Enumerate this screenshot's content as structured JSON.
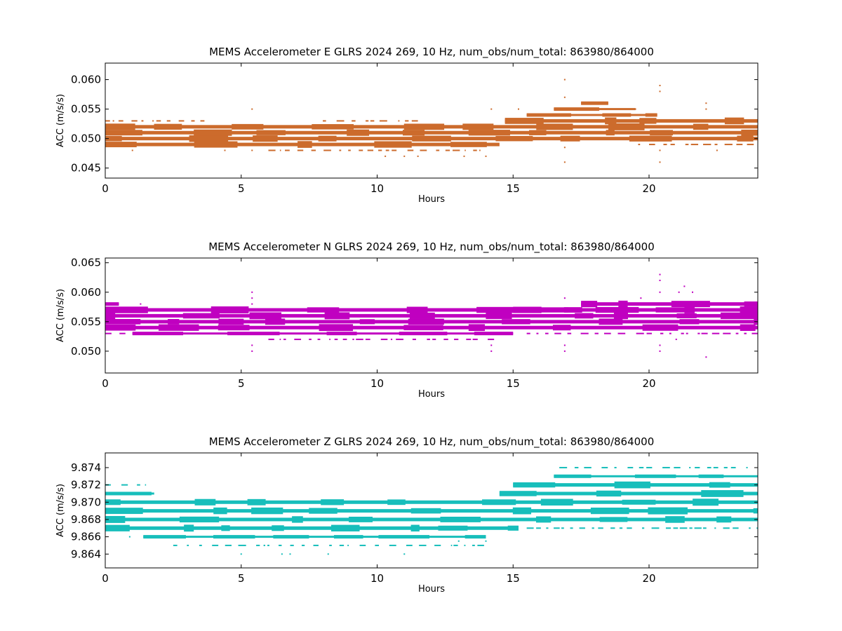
{
  "chart_data": [
    {
      "type": "scatter",
      "title": "MEMS Accelerometer E GLRS 2024 269, 10 Hz, num_obs/num_total: 863980/864000",
      "xlabel": "Hours",
      "ylabel": "ACC (m/s/s)",
      "xlim": [
        0,
        24
      ],
      "ylim": [
        0.0433,
        0.0628
      ],
      "xticks": [
        0,
        5,
        10,
        15,
        20
      ],
      "xtick_labels": [
        "0",
        "5",
        "10",
        "15",
        "20"
      ],
      "yticks": [
        0.045,
        0.05,
        0.055,
        0.06
      ],
      "ytick_labels": [
        "0.045",
        "0.050",
        "0.055",
        "0.060"
      ],
      "color": "#cc6b2c",
      "series": [
        {
          "bands": [
            {
              "y": 0.049,
              "x": [
                0,
                14.5
              ],
              "density": "dense"
            },
            {
              "y": 0.05,
              "x": [
                0,
                24
              ],
              "density": "dense"
            },
            {
              "y": 0.051,
              "x": [
                0,
                24
              ],
              "density": "dense"
            },
            {
              "y": 0.052,
              "x": [
                0,
                24
              ],
              "density": "dense"
            },
            {
              "y": 0.053,
              "x": [
                14.7,
                24
              ],
              "density": "dense"
            },
            {
              "y": 0.054,
              "x": [
                15.5,
                20.3
              ],
              "density": "medium"
            },
            {
              "y": 0.055,
              "x": [
                16.5,
                19.5
              ],
              "density": "medium"
            },
            {
              "y": 0.056,
              "x": [
                17.5,
                18.5
              ],
              "density": "medium"
            },
            {
              "y": 0.048,
              "x": [
                6.0,
                13.8
              ],
              "density": "sparse"
            },
            {
              "y": 0.049,
              "x": [
                19.6,
                24
              ],
              "density": "sparse"
            },
            {
              "y": 0.053,
              "x": [
                0,
                3.9
              ],
              "density": "sparse"
            },
            {
              "y": 0.053,
              "x": [
                8.0,
                11.5
              ],
              "density": "sparse"
            }
          ],
          "points": [
            {
              "x": 0.3,
              "y": 0.053
            },
            {
              "x": 1.0,
              "y": 0.048
            },
            {
              "x": 4.4,
              "y": 0.048
            },
            {
              "x": 5.4,
              "y": 0.055
            },
            {
              "x": 5.4,
              "y": 0.048
            },
            {
              "x": 10.3,
              "y": 0.047
            },
            {
              "x": 11.0,
              "y": 0.047
            },
            {
              "x": 11.5,
              "y": 0.047
            },
            {
              "x": 13.2,
              "y": 0.047
            },
            {
              "x": 14.0,
              "y": 0.047
            },
            {
              "x": 14.2,
              "y": 0.055
            },
            {
              "x": 16.9,
              "y": 0.06
            },
            {
              "x": 16.9,
              "y": 0.057
            },
            {
              "x": 16.9,
              "y": 0.046
            },
            {
              "x": 16.9,
              "y": 0.0485
            },
            {
              "x": 20.4,
              "y": 0.059
            },
            {
              "x": 20.4,
              "y": 0.058
            },
            {
              "x": 20.4,
              "y": 0.046
            },
            {
              "x": 20.4,
              "y": 0.048
            },
            {
              "x": 22.1,
              "y": 0.056
            },
            {
              "x": 22.1,
              "y": 0.055
            },
            {
              "x": 22.5,
              "y": 0.048
            },
            {
              "x": 19.5,
              "y": 0.055
            },
            {
              "x": 15.2,
              "y": 0.055
            }
          ]
        }
      ]
    },
    {
      "type": "scatter",
      "title": "MEMS Accelerometer N GLRS 2024 269, 10 Hz, num_obs/num_total: 863980/864000",
      "xlabel": "Hours",
      "ylabel": "ACC (m/s/s)",
      "xlim": [
        0,
        24
      ],
      "ylim": [
        0.0463,
        0.0658
      ],
      "xticks": [
        0,
        5,
        10,
        15,
        20
      ],
      "xtick_labels": [
        "0",
        "5",
        "10",
        "15",
        "20"
      ],
      "yticks": [
        0.05,
        0.055,
        0.06,
        0.065
      ],
      "ytick_labels": [
        "0.050",
        "0.055",
        "0.060",
        "0.065"
      ],
      "color": "#c000c0",
      "series": [
        {
          "bands": [
            {
              "y": 0.053,
              "x": [
                1.0,
                15.0
              ],
              "density": "medium"
            },
            {
              "y": 0.054,
              "x": [
                0,
                24
              ],
              "density": "dense"
            },
            {
              "y": 0.055,
              "x": [
                0,
                24
              ],
              "density": "dense"
            },
            {
              "y": 0.056,
              "x": [
                0,
                24
              ],
              "density": "dense"
            },
            {
              "y": 0.057,
              "x": [
                0,
                24
              ],
              "density": "dense"
            },
            {
              "y": 0.058,
              "x": [
                0,
                0.5
              ],
              "density": "medium"
            },
            {
              "y": 0.058,
              "x": [
                17.5,
                24
              ],
              "density": "dense"
            },
            {
              "y": 0.057,
              "x": [
                15.0,
                24
              ],
              "density": "dense"
            },
            {
              "y": 0.052,
              "x": [
                6.0,
                14.5
              ],
              "density": "sparse"
            },
            {
              "y": 0.053,
              "x": [
                15.5,
                24
              ],
              "density": "sparse"
            },
            {
              "y": 0.053,
              "x": [
                0,
                0.8
              ],
              "density": "sparse"
            }
          ],
          "points": [
            {
              "x": 5.4,
              "y": 0.06
            },
            {
              "x": 5.4,
              "y": 0.059
            },
            {
              "x": 5.4,
              "y": 0.058
            },
            {
              "x": 5.4,
              "y": 0.051
            },
            {
              "x": 5.4,
              "y": 0.05
            },
            {
              "x": 1.3,
              "y": 0.058
            },
            {
              "x": 3.3,
              "y": 0.057
            },
            {
              "x": 14.2,
              "y": 0.051
            },
            {
              "x": 14.2,
              "y": 0.05
            },
            {
              "x": 14.2,
              "y": 0.057
            },
            {
              "x": 16.9,
              "y": 0.059
            },
            {
              "x": 16.9,
              "y": 0.05
            },
            {
              "x": 16.9,
              "y": 0.051
            },
            {
              "x": 20.4,
              "y": 0.063
            },
            {
              "x": 20.4,
              "y": 0.062
            },
            {
              "x": 20.4,
              "y": 0.06
            },
            {
              "x": 20.4,
              "y": 0.051
            },
            {
              "x": 20.4,
              "y": 0.05
            },
            {
              "x": 21.3,
              "y": 0.061
            },
            {
              "x": 21.1,
              "y": 0.06
            },
            {
              "x": 21.6,
              "y": 0.06
            },
            {
              "x": 22.1,
              "y": 0.049
            },
            {
              "x": 19.7,
              "y": 0.059
            },
            {
              "x": 21.0,
              "y": 0.052
            }
          ]
        }
      ]
    },
    {
      "type": "scatter",
      "title": "MEMS Accelerometer Z GLRS 2024 269, 10 Hz, num_obs/num_total: 863980/864000",
      "xlabel": "Hours",
      "ylabel": "ACC (m/s/s)",
      "xlim": [
        0,
        24
      ],
      "ylim": [
        9.8624,
        9.8757
      ],
      "xticks": [
        0,
        5,
        10,
        15,
        20
      ],
      "xtick_labels": [
        "0",
        "5",
        "10",
        "15",
        "20"
      ],
      "yticks": [
        9.864,
        9.866,
        9.868,
        9.87,
        9.872,
        9.874
      ],
      "ytick_labels": [
        "9.864",
        "9.866",
        "9.868",
        "9.870",
        "9.872",
        "9.874"
      ],
      "color": "#17bebb",
      "series": [
        {
          "bands": [
            {
              "y": 9.866,
              "x": [
                1.4,
                14.0
              ],
              "density": "medium"
            },
            {
              "y": 9.867,
              "x": [
                0,
                15.2
              ],
              "density": "dense"
            },
            {
              "y": 9.868,
              "x": [
                0,
                24
              ],
              "density": "dense"
            },
            {
              "y": 9.869,
              "x": [
                0,
                24
              ],
              "density": "dense"
            },
            {
              "y": 9.87,
              "x": [
                0,
                24
              ],
              "density": "dense"
            },
            {
              "y": 9.871,
              "x": [
                14.5,
                24
              ],
              "density": "dense"
            },
            {
              "y": 9.872,
              "x": [
                15.0,
                24
              ],
              "density": "dense"
            },
            {
              "y": 9.873,
              "x": [
                16.5,
                24
              ],
              "density": "medium"
            },
            {
              "y": 9.874,
              "x": [
                16.7,
                23.9
              ],
              "density": "sparse"
            },
            {
              "y": 9.871,
              "x": [
                0,
                1.8
              ],
              "density": "medium"
            },
            {
              "y": 9.872,
              "x": [
                0,
                1.5
              ],
              "density": "sparse"
            },
            {
              "y": 9.865,
              "x": [
                2.5,
                14.0
              ],
              "density": "sparse"
            },
            {
              "y": 9.867,
              "x": [
                15.5,
                24
              ],
              "density": "sparse"
            }
          ],
          "points": [
            {
              "x": 5.0,
              "y": 9.864
            },
            {
              "x": 6.5,
              "y": 9.864
            },
            {
              "x": 6.8,
              "y": 9.864
            },
            {
              "x": 8.2,
              "y": 9.864
            },
            {
              "x": 11.0,
              "y": 9.864
            },
            {
              "x": 0.9,
              "y": 9.866
            },
            {
              "x": 13.0,
              "y": 9.8655
            },
            {
              "x": 14.0,
              "y": 9.8655
            },
            {
              "x": 12.0,
              "y": 9.87
            },
            {
              "x": 13.5,
              "y": 9.87
            }
          ]
        }
      ]
    }
  ]
}
